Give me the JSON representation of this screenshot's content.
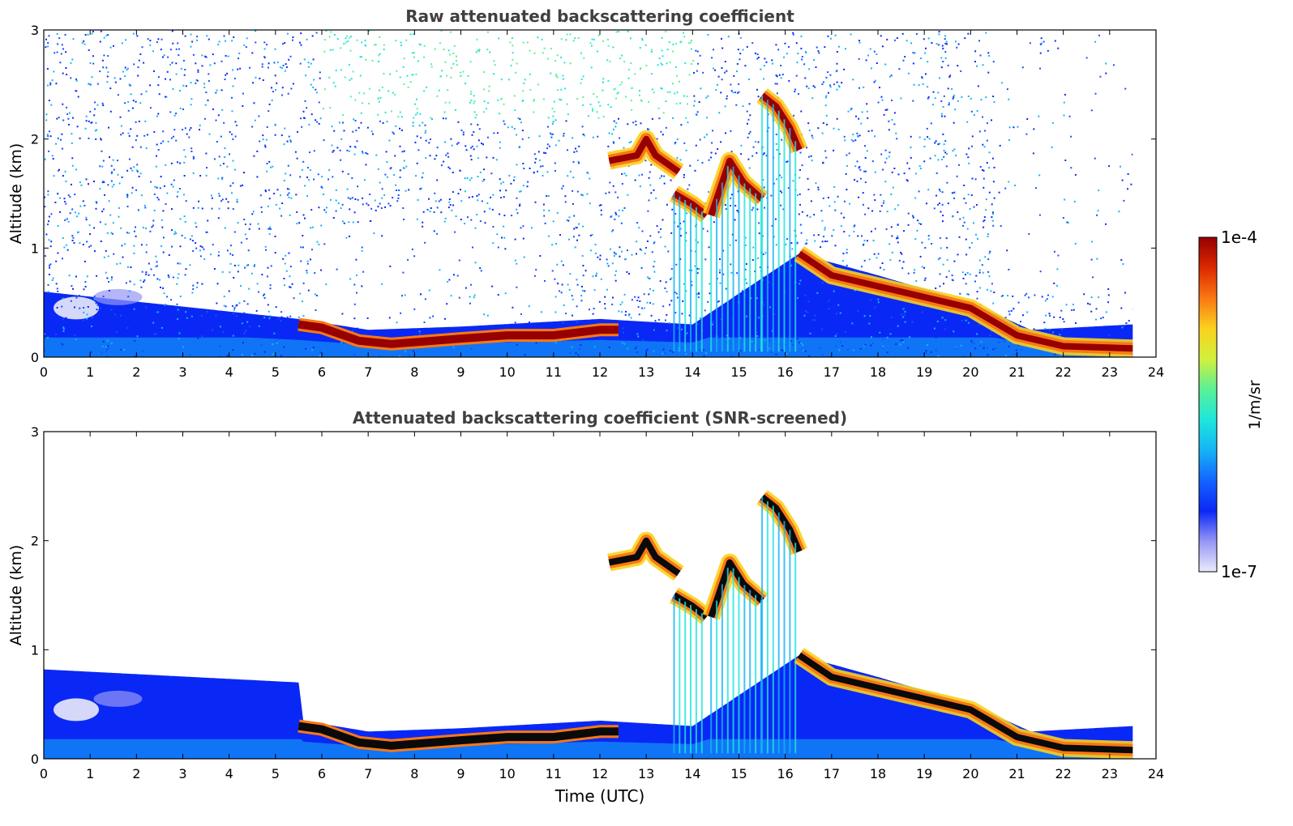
{
  "figure": {
    "xlabel": "Time (UTC)",
    "ylabel": "Altitude (km)"
  },
  "colorbar": {
    "label": "1/m/sr",
    "max_label": "1e-4",
    "min_label": "1e-7",
    "scale": "log",
    "range": [
      1e-07,
      0.0001
    ],
    "colormap": [
      "#ebebfa",
      "#9696f5",
      "#0a28f5",
      "#1464ff",
      "#14b4f5",
      "#1ee6dc",
      "#5af096",
      "#d2f03c",
      "#fad21e",
      "#fa7814",
      "#dc2800",
      "#960000"
    ]
  },
  "chart_data": [
    {
      "type": "heatmap",
      "title": "Raw attenuated backscattering coefficient",
      "xlabel": "",
      "ylabel": "Altitude (km)",
      "xlim": [
        0,
        24
      ],
      "ylim": [
        0,
        3
      ],
      "x_ticks": [
        "0",
        "1",
        "2",
        "3",
        "4",
        "5",
        "6",
        "7",
        "8",
        "9",
        "10",
        "11",
        "12",
        "13",
        "14",
        "15",
        "16",
        "17",
        "18",
        "19",
        "20",
        "21",
        "22",
        "23",
        "24"
      ],
      "y_ticks": [
        "0",
        "1",
        "2",
        "3"
      ],
      "data_end_time": 23.5,
      "noise": "high",
      "boundary_layer_top_km": [
        [
          0,
          0.6
        ],
        [
          5.5,
          0.35
        ],
        [
          7,
          0.25
        ],
        [
          9,
          0.28
        ],
        [
          12,
          0.35
        ],
        [
          14,
          0.3
        ],
        [
          16.3,
          0.95
        ],
        [
          18,
          0.75
        ],
        [
          20,
          0.5
        ],
        [
          21.3,
          0.25
        ],
        [
          23.5,
          0.3
        ]
      ],
      "aerosol_layer_km": [
        [
          5.5,
          0.3
        ],
        [
          6,
          0.27
        ],
        [
          6.8,
          0.15
        ],
        [
          7.5,
          0.12
        ],
        [
          9,
          0.17
        ],
        [
          10,
          0.2
        ],
        [
          11,
          0.2
        ],
        [
          12,
          0.25
        ],
        [
          12.4,
          0.25
        ]
      ],
      "cloud_layers_km": [
        {
          "t0": 12.2,
          "t1": 13.7,
          "path": [
            [
              12.2,
              1.8
            ],
            [
              12.8,
              1.85
            ],
            [
              13.0,
              2.0
            ],
            [
              13.2,
              1.85
            ],
            [
              13.7,
              1.7
            ]
          ]
        },
        {
          "t0": 13.6,
          "t1": 14.3,
          "path": [
            [
              13.6,
              1.5
            ],
            [
              14.0,
              1.4
            ],
            [
              14.3,
              1.3
            ]
          ]
        },
        {
          "t0": 14.4,
          "t1": 15.5,
          "path": [
            [
              14.4,
              1.3
            ],
            [
              14.8,
              1.8
            ],
            [
              15.1,
              1.6
            ],
            [
              15.5,
              1.45
            ]
          ]
        },
        {
          "t0": 15.5,
          "t1": 16.3,
          "path": [
            [
              15.5,
              2.4
            ],
            [
              15.8,
              2.3
            ],
            [
              16.1,
              2.1
            ],
            [
              16.3,
              1.9
            ]
          ]
        },
        {
          "t0": 16.3,
          "t1": 23.5,
          "path": [
            [
              16.3,
              0.95
            ],
            [
              17,
              0.75
            ],
            [
              18,
              0.65
            ],
            [
              19,
              0.55
            ],
            [
              20,
              0.45
            ],
            [
              21,
              0.2
            ],
            [
              22,
              0.1
            ],
            [
              23.5,
              0.08
            ]
          ]
        }
      ]
    },
    {
      "type": "heatmap",
      "title": "Attenuated backscattering coefficient (SNR-screened)",
      "xlabel": "Time (UTC)",
      "ylabel": "Altitude (km)",
      "xlim": [
        0,
        24
      ],
      "ylim": [
        0,
        3
      ],
      "x_ticks": [
        "0",
        "1",
        "2",
        "3",
        "4",
        "5",
        "6",
        "7",
        "8",
        "9",
        "10",
        "11",
        "12",
        "13",
        "14",
        "15",
        "16",
        "17",
        "18",
        "19",
        "20",
        "21",
        "22",
        "23",
        "24"
      ],
      "y_ticks": [
        "0",
        "1",
        "2",
        "3"
      ],
      "data_end_time": 23.5,
      "noise": "screened",
      "boundary_layer_top_km": [
        [
          0,
          0.82
        ],
        [
          5.5,
          0.7
        ],
        [
          5.6,
          0.35
        ],
        [
          7,
          0.25
        ],
        [
          9,
          0.28
        ],
        [
          12,
          0.35
        ],
        [
          14,
          0.3
        ],
        [
          16.3,
          0.95
        ],
        [
          18,
          0.75
        ],
        [
          20,
          0.5
        ],
        [
          21.3,
          0.25
        ],
        [
          23.5,
          0.3
        ]
      ],
      "aerosol_layer_km": [
        [
          5.5,
          0.3
        ],
        [
          6,
          0.27
        ],
        [
          6.8,
          0.15
        ],
        [
          7.5,
          0.12
        ],
        [
          9,
          0.17
        ],
        [
          10,
          0.2
        ],
        [
          11,
          0.2
        ],
        [
          12,
          0.25
        ],
        [
          12.4,
          0.25
        ]
      ],
      "cloud_layers_km": [
        {
          "t0": 12.2,
          "t1": 13.7,
          "path": [
            [
              12.2,
              1.8
            ],
            [
              12.8,
              1.85
            ],
            [
              13.0,
              2.0
            ],
            [
              13.2,
              1.85
            ],
            [
              13.7,
              1.7
            ]
          ]
        },
        {
          "t0": 13.6,
          "t1": 14.3,
          "path": [
            [
              13.6,
              1.5
            ],
            [
              14.0,
              1.4
            ],
            [
              14.3,
              1.3
            ]
          ]
        },
        {
          "t0": 14.4,
          "t1": 15.5,
          "path": [
            [
              14.4,
              1.3
            ],
            [
              14.8,
              1.8
            ],
            [
              15.1,
              1.6
            ],
            [
              15.5,
              1.45
            ]
          ]
        },
        {
          "t0": 15.5,
          "t1": 16.3,
          "path": [
            [
              15.5,
              2.4
            ],
            [
              15.8,
              2.3
            ],
            [
              16.1,
              2.1
            ],
            [
              16.3,
              1.9
            ]
          ]
        },
        {
          "t0": 16.3,
          "t1": 23.5,
          "path": [
            [
              16.3,
              0.95
            ],
            [
              17,
              0.75
            ],
            [
              18,
              0.65
            ],
            [
              19,
              0.55
            ],
            [
              20,
              0.45
            ],
            [
              21,
              0.2
            ],
            [
              22,
              0.1
            ],
            [
              23.5,
              0.08
            ]
          ]
        }
      ]
    }
  ]
}
